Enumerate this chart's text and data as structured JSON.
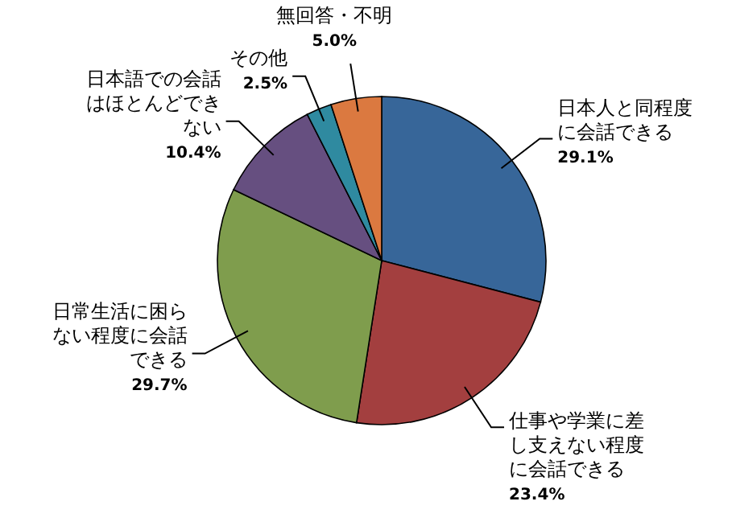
{
  "chart_data": {
    "type": "pie",
    "categories": [
      "日本人と同程度に会話できる",
      "仕事や学業に差し支えない程度に会話できる",
      "日常生活に困らない程度に会話できる",
      "日本語での会話はほとんどできない",
      "その他",
      "無回答・不明"
    ],
    "values": [
      29.1,
      23.4,
      29.7,
      10.4,
      2.5,
      5.0
    ],
    "value_labels": [
      "29.1%",
      "23.4%",
      "29.7%",
      "10.4%",
      "2.5%",
      "5.0%"
    ],
    "colors": [
      "#376699",
      "#a33f3f",
      "#7f9d4d",
      "#664f80",
      "#2f8aa0",
      "#db7940"
    ]
  }
}
